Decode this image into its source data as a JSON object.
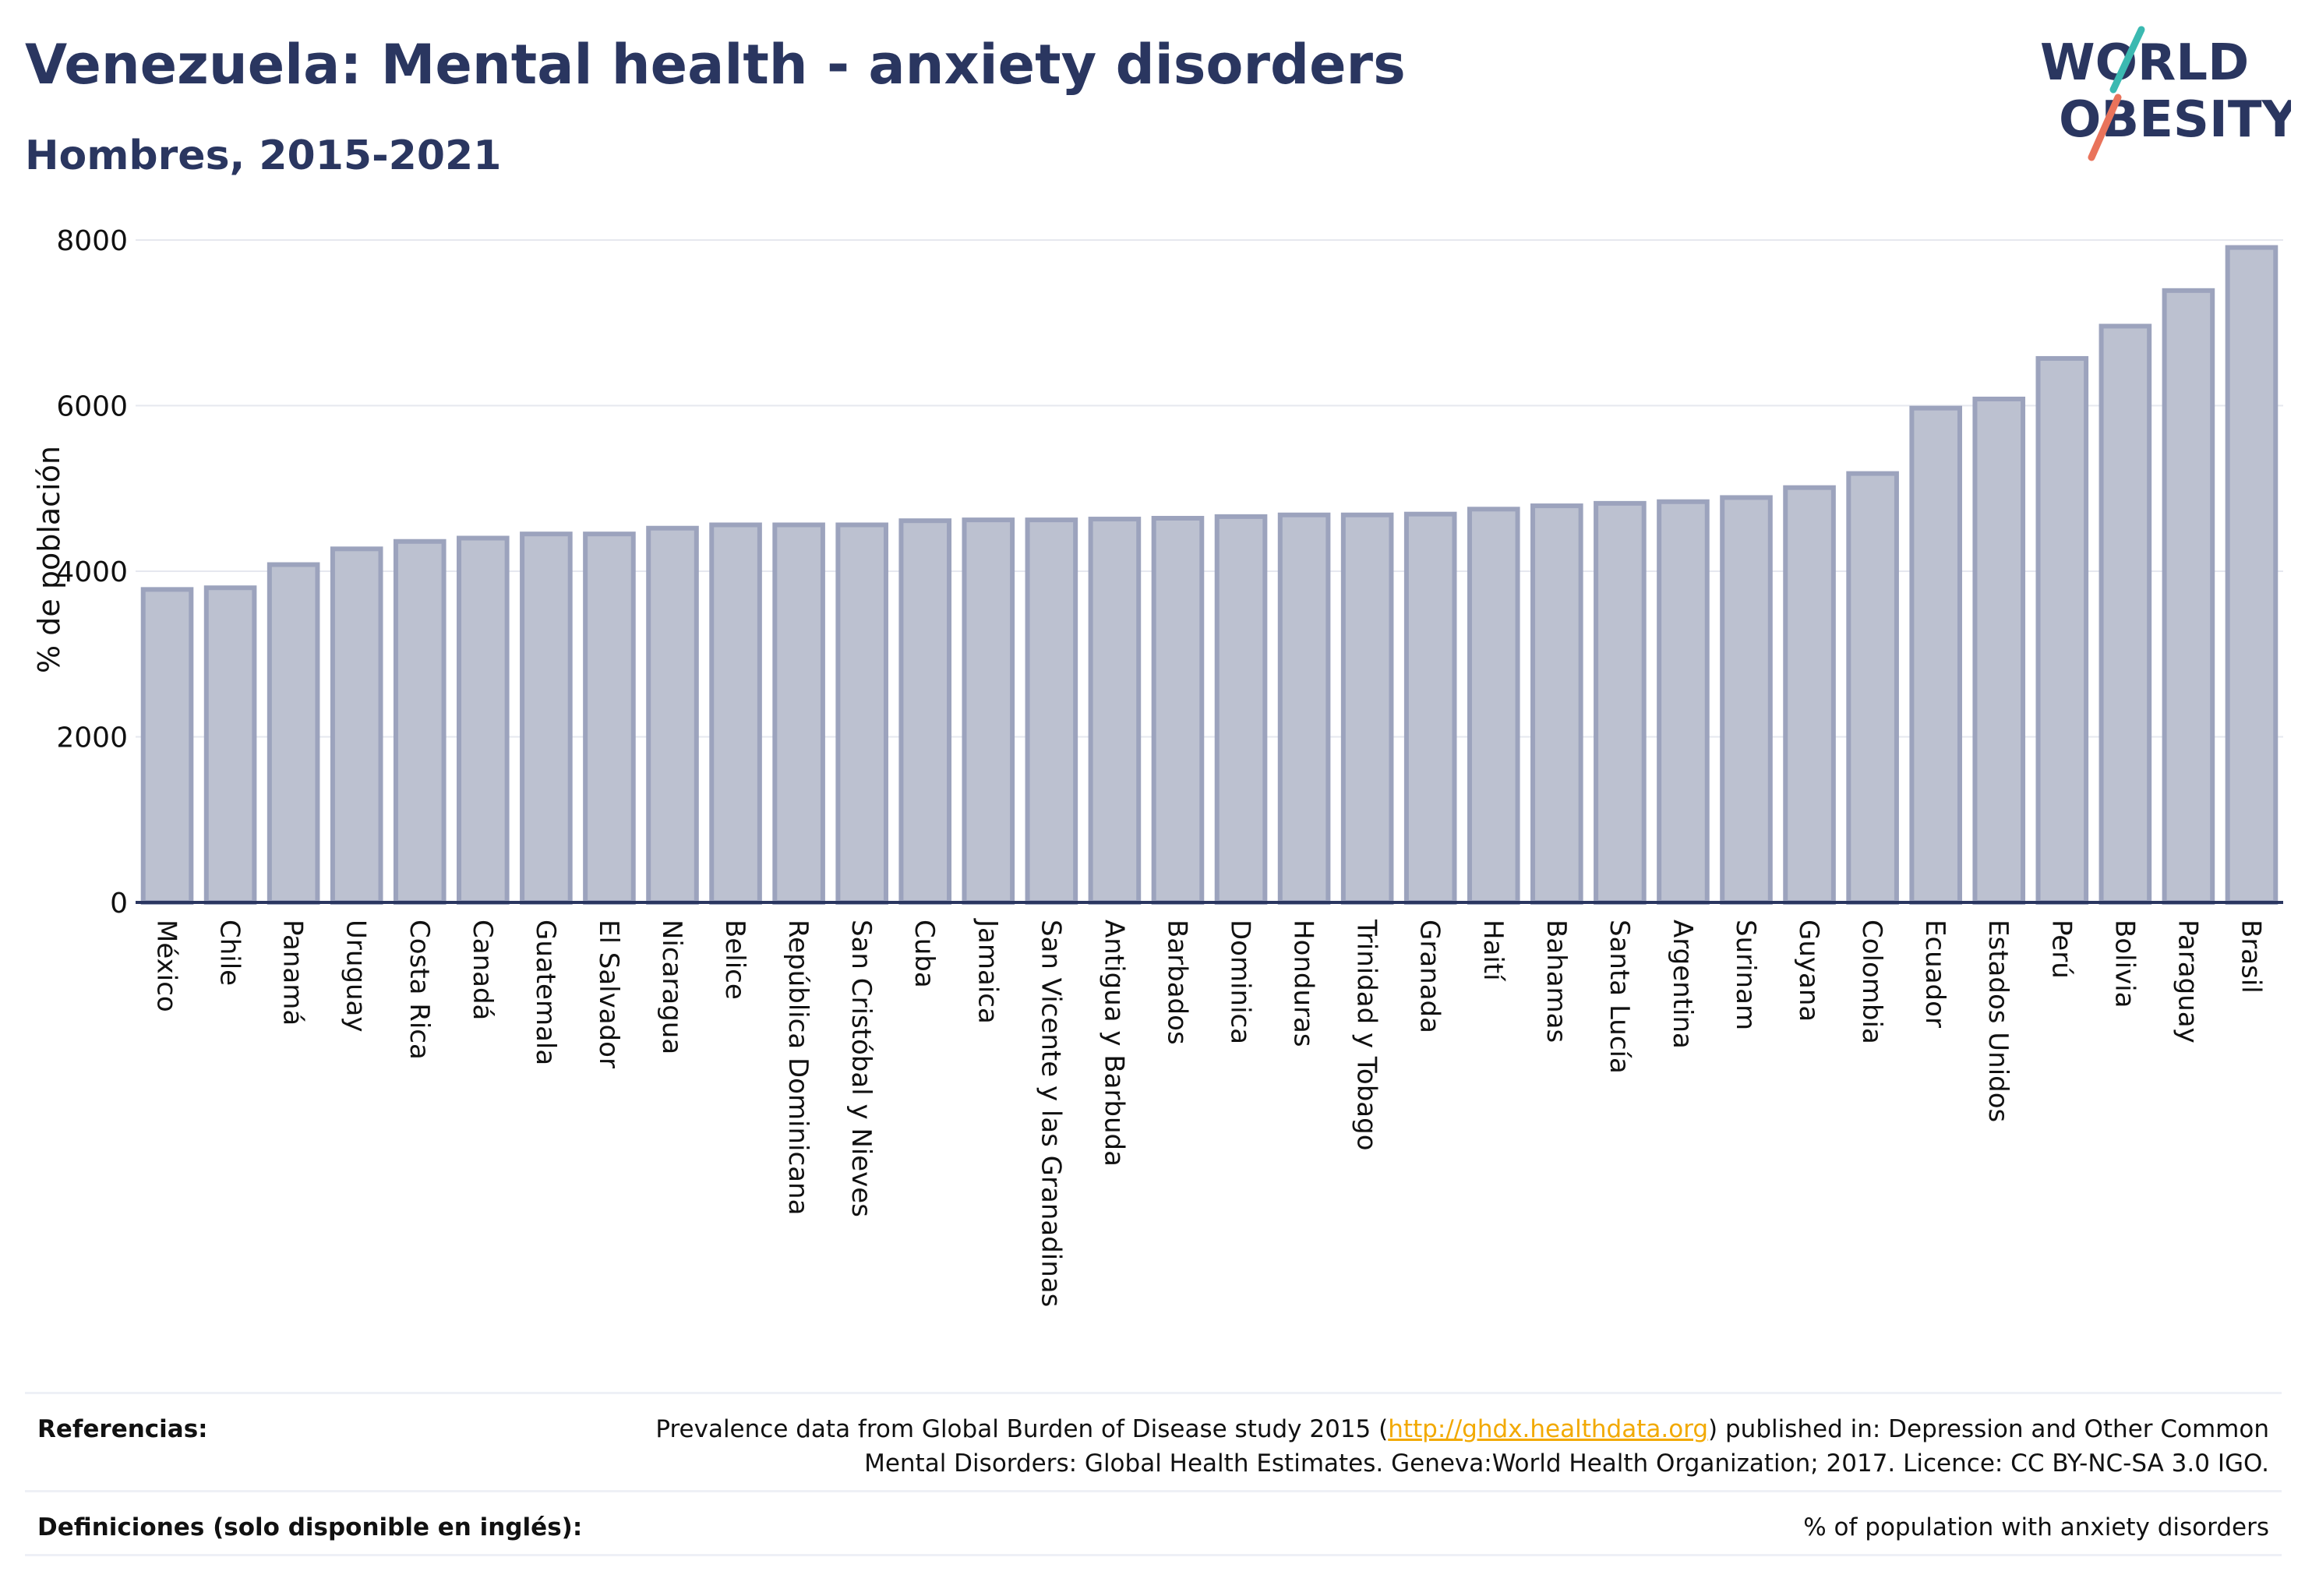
{
  "title": "Venezuela: Mental health - anxiety disorders",
  "subtitle": "Hombres, 2015-2021",
  "logo": {
    "line1": "WORLD",
    "line2": "OBESITY"
  },
  "chart_data": {
    "type": "bar",
    "ylabel": "% de población",
    "xlabel": "",
    "ylim": [
      0,
      8000
    ],
    "yticks": [
      0,
      2000,
      4000,
      6000,
      8000
    ],
    "grid": true,
    "colors": {
      "bar_fill": "#bcc1d0",
      "bar_stroke": "#9ca3bd",
      "axis": "#2a3660"
    },
    "categories": [
      "México",
      "Chile",
      "Panamá",
      "Uruguay",
      "Costa Rica",
      "Canadá",
      "Guatemala",
      "El Salvador",
      "Nicaragua",
      "Belice",
      "República Dominicana",
      "San Cristóbal y Nieves",
      "Cuba",
      "Jamaica",
      "San Vicente y las Granadinas",
      "Antigua y Barbuda",
      "Barbados",
      "Dominica",
      "Honduras",
      "Trinidad y Tobago",
      "Granada",
      "Haití",
      "Bahamas",
      "Santa Lucía",
      "Argentina",
      "Surinam",
      "Guyana",
      "Colombia",
      "Ecuador",
      "Estados Unidos",
      "Perú",
      "Bolivia",
      "Paraguay",
      "Brasil"
    ],
    "values": [
      3780,
      3800,
      4080,
      4270,
      4360,
      4400,
      4450,
      4450,
      4520,
      4560,
      4560,
      4560,
      4610,
      4620,
      4620,
      4630,
      4640,
      4660,
      4680,
      4680,
      4690,
      4750,
      4790,
      4820,
      4840,
      4890,
      5010,
      5180,
      5970,
      6080,
      6570,
      6960,
      7390,
      7910
    ]
  },
  "footer": {
    "references_label": "Referencias:",
    "references_pre": "Prevalence data from Global Burden of Disease study 2015 (",
    "references_link": "http://ghdx.healthdata.org",
    "references_post": ") published in: Depression and Other Common",
    "references_line2": "Mental Disorders: Global Health Estimates. Geneva:World Health Organization; 2017. Licence: CC BY-NC-SA 3.0 IGO.",
    "definitions_label": "Definiciones (solo disponible en inglés):",
    "definitions_text": "% of population with anxiety disorders"
  }
}
